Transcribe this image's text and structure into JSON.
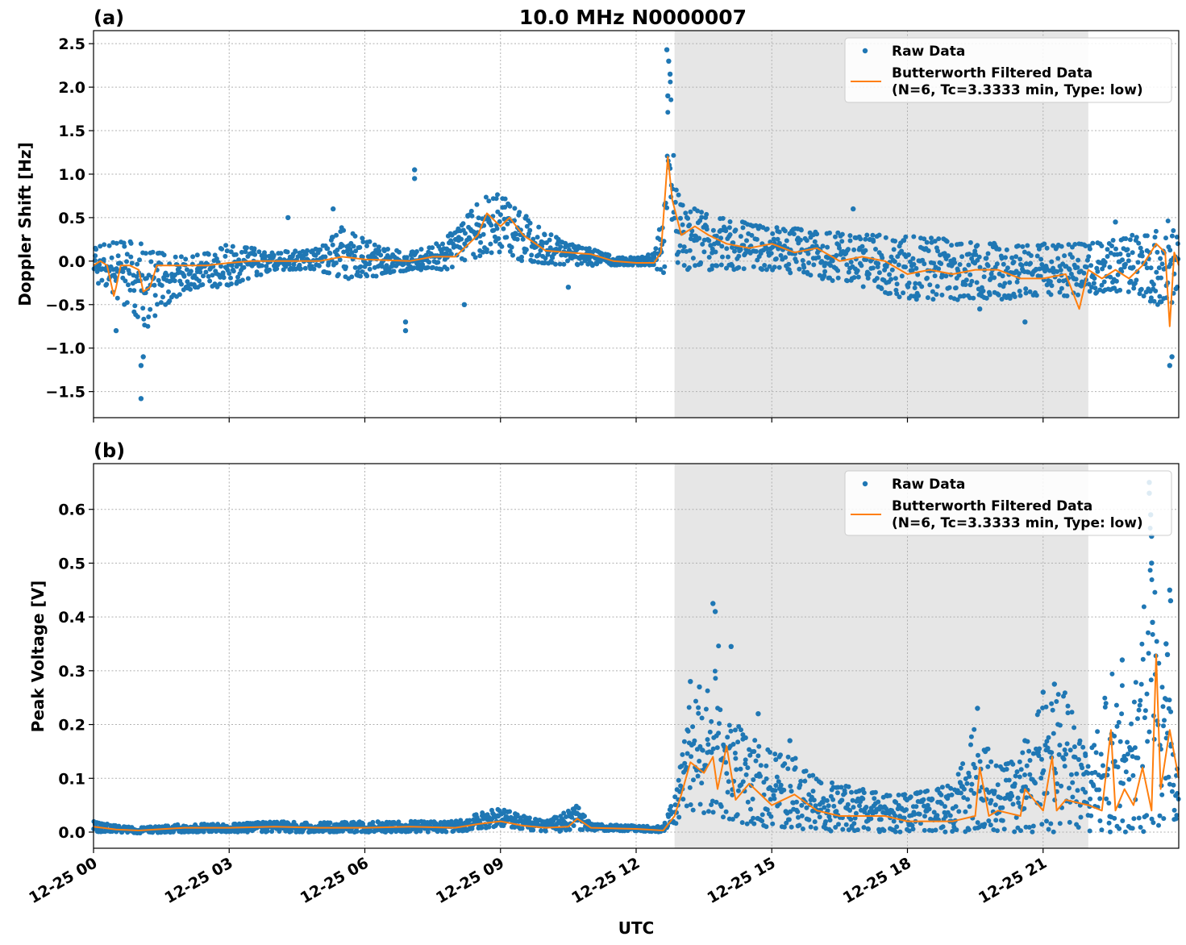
{
  "figure": {
    "title": "10.0 MHz N0000007",
    "xlabel": "UTC"
  },
  "colors": {
    "raw": "#1f77b4",
    "filtered": "#ff7f0e",
    "shade": "#e6e6e6"
  },
  "chart_data": [
    {
      "type": "scatter",
      "panel_tag": "(a)",
      "ylabel": "Doppler Shift [Hz]",
      "x_range_hours": [
        0,
        24
      ],
      "x_ticks": [
        "12-25 00",
        "12-25 03",
        "12-25 06",
        "12-25 09",
        "12-25 12",
        "12-25 15",
        "12-25 18",
        "12-25 21"
      ],
      "ylim": [
        -1.8,
        2.65
      ],
      "y_ticks": [
        "2.5",
        "2.0",
        "1.5",
        "1.0",
        "0.5",
        "0.0",
        "−0.5",
        "−1.0",
        "−1.5"
      ],
      "y_tick_values": [
        2.5,
        2.0,
        1.5,
        1.0,
        0.5,
        0.0,
        -0.5,
        -1.0,
        -1.5
      ],
      "grid": true,
      "shaded_interval_hours": [
        12.85,
        22.0
      ],
      "legend": {
        "placement": "top-right",
        "entries": [
          "Raw Data",
          "Butterworth Filtered Data",
          "(N=6, Tc=3.3333 min, Type: low)"
        ]
      },
      "series": [
        {
          "name": "Raw Data",
          "kind": "points",
          "envelope": {
            "x": [
              0,
              0.3,
              0.6,
              0.9,
              1.2,
              1.5,
              2.0,
              2.5,
              3.0,
              4.0,
              5.0,
              5.5,
              6.0,
              6.5,
              7.0,
              7.5,
              8.0,
              8.5,
              9.0,
              9.5,
              10.0,
              10.5,
              11.0,
              11.5,
              12.0,
              12.4,
              12.6,
              12.75,
              12.85,
              13.0,
              13.5,
              14.0,
              15.0,
              16.0,
              17.0,
              18.0,
              19.0,
              20.0,
              21.0,
              22.0,
              23.0,
              23.5,
              23.85,
              24.0
            ],
            "low": [
              -0.3,
              -0.3,
              -0.5,
              -0.6,
              -0.8,
              -0.55,
              -0.35,
              -0.3,
              -0.3,
              -0.1,
              -0.1,
              -0.25,
              -0.2,
              -0.15,
              -0.1,
              -0.1,
              -0.1,
              0.05,
              0.1,
              0.0,
              -0.05,
              -0.05,
              -0.05,
              -0.05,
              -0.05,
              -0.05,
              -0.2,
              0.3,
              0.0,
              -0.1,
              -0.1,
              -0.1,
              -0.1,
              -0.2,
              -0.3,
              -0.45,
              -0.45,
              -0.45,
              -0.4,
              -0.4,
              -0.35,
              -0.5,
              -0.5,
              -0.3
            ],
            "high": [
              0.15,
              0.2,
              0.25,
              0.25,
              0.15,
              0.1,
              0.05,
              0.1,
              0.2,
              0.1,
              0.15,
              0.4,
              0.25,
              0.15,
              0.1,
              0.2,
              0.35,
              0.7,
              0.8,
              0.55,
              0.35,
              0.2,
              0.15,
              0.05,
              0.04,
              0.1,
              0.6,
              2.3,
              0.9,
              0.7,
              0.55,
              0.5,
              0.4,
              0.35,
              0.3,
              0.3,
              0.25,
              0.2,
              0.2,
              0.2,
              0.3,
              0.4,
              0.5,
              0.35
            ]
          },
          "outliers": [
            {
              "x": 1.05,
              "y": -1.58
            },
            {
              "x": 1.05,
              "y": -1.2
            },
            {
              "x": 1.1,
              "y": -1.1
            },
            {
              "x": 0.5,
              "y": -0.8
            },
            {
              "x": 7.1,
              "y": 1.05
            },
            {
              "x": 7.1,
              "y": 0.95
            },
            {
              "x": 6.9,
              "y": -0.8
            },
            {
              "x": 6.9,
              "y": -0.7
            },
            {
              "x": 12.68,
              "y": 2.43
            },
            {
              "x": 12.72,
              "y": 2.3
            },
            {
              "x": 12.75,
              "y": 2.15
            },
            {
              "x": 12.7,
              "y": 1.9
            },
            {
              "x": 4.3,
              "y": 0.5
            },
            {
              "x": 5.3,
              "y": 0.6
            },
            {
              "x": 10.5,
              "y": -0.3
            },
            {
              "x": 8.2,
              "y": -0.5
            },
            {
              "x": 23.8,
              "y": -1.2
            },
            {
              "x": 23.85,
              "y": -1.1
            },
            {
              "x": 20.6,
              "y": -0.7
            },
            {
              "x": 19.6,
              "y": -0.55
            },
            {
              "x": 16.8,
              "y": 0.6
            },
            {
              "x": 22.6,
              "y": 0.45
            }
          ]
        },
        {
          "name": "Butterworth Filtered Data",
          "kind": "line",
          "x": [
            0,
            0.15,
            0.3,
            0.45,
            0.5,
            0.6,
            0.8,
            1.0,
            1.1,
            1.25,
            1.4,
            1.6,
            2.0,
            2.5,
            3.0,
            3.5,
            4.0,
            5.0,
            5.5,
            6.0,
            7.0,
            7.5,
            8.0,
            8.3,
            8.5,
            8.7,
            9.0,
            9.2,
            9.5,
            10.0,
            10.5,
            11.0,
            11.5,
            12.0,
            12.4,
            12.55,
            12.7,
            12.8,
            12.9,
            13.0,
            13.3,
            13.6,
            14.0,
            14.5,
            15.0,
            15.5,
            16.0,
            16.5,
            17.0,
            17.5,
            18.0,
            18.5,
            19.0,
            19.5,
            20.0,
            20.5,
            21.0,
            21.5,
            21.8,
            22.0,
            22.3,
            22.6,
            22.9,
            23.2,
            23.5,
            23.7,
            23.8,
            23.9,
            24.0
          ],
          "y": [
            -0.05,
            0.0,
            -0.05,
            -0.4,
            -0.3,
            -0.05,
            -0.05,
            -0.1,
            -0.35,
            -0.3,
            -0.05,
            -0.05,
            -0.05,
            -0.05,
            -0.02,
            0.0,
            0.0,
            0.0,
            0.05,
            0.02,
            0.0,
            0.05,
            0.05,
            0.2,
            0.3,
            0.55,
            0.4,
            0.5,
            0.3,
            0.12,
            0.1,
            0.08,
            0.0,
            -0.02,
            -0.02,
            0.1,
            1.2,
            0.7,
            0.5,
            0.3,
            0.4,
            0.3,
            0.2,
            0.15,
            0.2,
            0.1,
            0.15,
            0.0,
            0.05,
            0.0,
            -0.15,
            -0.1,
            -0.15,
            -0.1,
            -0.1,
            -0.2,
            -0.2,
            -0.15,
            -0.55,
            -0.1,
            -0.2,
            -0.1,
            -0.2,
            -0.05,
            0.2,
            0.1,
            -0.75,
            0.1,
            -0.05
          ]
        }
      ]
    },
    {
      "type": "scatter",
      "panel_tag": "(b)",
      "ylabel": "Peak Voltage [V]",
      "x_range_hours": [
        0,
        24
      ],
      "x_ticks": [
        "12-25 00",
        "12-25 03",
        "12-25 06",
        "12-25 09",
        "12-25 12",
        "12-25 15",
        "12-25 18",
        "12-25 21"
      ],
      "ylim": [
        -0.03,
        0.685
      ],
      "y_ticks": [
        "0.6",
        "0.5",
        "0.4",
        "0.3",
        "0.2",
        "0.1",
        "0.0"
      ],
      "y_tick_values": [
        0.6,
        0.5,
        0.4,
        0.3,
        0.2,
        0.1,
        0.0
      ],
      "grid": true,
      "shaded_interval_hours": [
        12.85,
        22.0
      ],
      "legend": {
        "placement": "top-right",
        "entries": [
          "Raw Data",
          "Butterworth Filtered Data",
          "(N=6, Tc=3.3333 min, Type: low)"
        ]
      },
      "series": [
        {
          "name": "Raw Data",
          "kind": "points",
          "envelope": {
            "x": [
              0,
              0.5,
              1.0,
              2.0,
              3.0,
              4.0,
              5.0,
              6.0,
              7.0,
              8.0,
              8.5,
              9.0,
              9.5,
              10.0,
              10.5,
              10.7,
              11.0,
              12.0,
              12.6,
              12.9,
              13.2,
              13.5,
              13.8,
              14.0,
              14.5,
              15.0,
              15.5,
              16.0,
              17.0,
              18.0,
              19.0,
              19.5,
              20.0,
              20.5,
              21.0,
              21.5,
              22.0,
              22.5,
              23.0,
              23.4,
              23.6,
              24.0
            ],
            "low": [
              0.0,
              0.0,
              -0.002,
              0.0,
              0.0,
              0.0,
              0.0,
              0.0,
              0.0,
              0.0,
              0.005,
              0.01,
              0.005,
              0.0,
              0.0,
              0.005,
              0.003,
              0.002,
              0.0,
              0.01,
              0.04,
              0.03,
              0.03,
              0.02,
              0.01,
              0.01,
              0.0,
              0.0,
              0.0,
              0.0,
              0.0,
              0.0,
              0.0,
              0.0,
              0.0,
              0.0,
              0.0,
              0.0,
              0.0,
              0.0,
              0.01,
              0.02
            ],
            "high": [
              0.02,
              0.012,
              0.008,
              0.015,
              0.015,
              0.02,
              0.018,
              0.02,
              0.02,
              0.02,
              0.035,
              0.045,
              0.03,
              0.02,
              0.04,
              0.05,
              0.015,
              0.012,
              0.01,
              0.08,
              0.26,
              0.22,
              0.4,
              0.22,
              0.18,
              0.15,
              0.14,
              0.1,
              0.08,
              0.07,
              0.09,
              0.2,
              0.12,
              0.14,
              0.25,
              0.26,
              0.13,
              0.3,
              0.25,
              0.6,
              0.3,
              0.2
            ]
          },
          "outliers": [
            {
              "x": 13.7,
              "y": 0.425
            },
            {
              "x": 13.75,
              "y": 0.41
            },
            {
              "x": 14.1,
              "y": 0.345
            },
            {
              "x": 13.2,
              "y": 0.28
            },
            {
              "x": 13.4,
              "y": 0.27
            },
            {
              "x": 14.7,
              "y": 0.22
            },
            {
              "x": 15.4,
              "y": 0.17
            },
            {
              "x": 19.55,
              "y": 0.23
            },
            {
              "x": 21.25,
              "y": 0.275
            },
            {
              "x": 21.0,
              "y": 0.26
            },
            {
              "x": 22.75,
              "y": 0.32
            },
            {
              "x": 23.35,
              "y": 0.65
            },
            {
              "x": 23.35,
              "y": 0.63
            },
            {
              "x": 23.38,
              "y": 0.59
            },
            {
              "x": 23.4,
              "y": 0.55
            },
            {
              "x": 23.4,
              "y": 0.5
            },
            {
              "x": 23.8,
              "y": 0.45
            },
            {
              "x": 23.82,
              "y": 0.43
            },
            {
              "x": 23.72,
              "y": 0.35
            },
            {
              "x": 23.75,
              "y": 0.33
            },
            {
              "x": 23.42,
              "y": 0.39
            },
            {
              "x": 20.6,
              "y": 0.17
            }
          ]
        },
        {
          "name": "Butterworth Filtered Data",
          "kind": "line",
          "x": [
            0,
            0.5,
            1.0,
            2.0,
            3.0,
            4.0,
            5.0,
            6.0,
            7.0,
            8.0,
            8.5,
            9.0,
            9.5,
            10.0,
            10.5,
            10.7,
            11.0,
            12.0,
            12.6,
            12.85,
            13.0,
            13.2,
            13.5,
            13.7,
            13.8,
            14.0,
            14.2,
            14.5,
            15.0,
            15.5,
            16.0,
            16.5,
            17.0,
            17.5,
            18.0,
            18.5,
            19.0,
            19.5,
            19.6,
            19.8,
            20.0,
            20.5,
            20.6,
            21.0,
            21.2,
            21.3,
            21.5,
            22.0,
            22.3,
            22.5,
            22.6,
            22.8,
            23.0,
            23.2,
            23.4,
            23.5,
            23.6,
            23.8,
            24.0
          ],
          "y": [
            0.01,
            0.005,
            0.003,
            0.008,
            0.008,
            0.01,
            0.008,
            0.008,
            0.01,
            0.008,
            0.015,
            0.02,
            0.012,
            0.008,
            0.01,
            0.025,
            0.008,
            0.006,
            0.003,
            0.03,
            0.07,
            0.13,
            0.11,
            0.14,
            0.08,
            0.16,
            0.06,
            0.09,
            0.05,
            0.07,
            0.04,
            0.03,
            0.03,
            0.03,
            0.02,
            0.02,
            0.02,
            0.03,
            0.12,
            0.03,
            0.04,
            0.03,
            0.08,
            0.04,
            0.14,
            0.04,
            0.06,
            0.05,
            0.04,
            0.19,
            0.04,
            0.08,
            0.05,
            0.12,
            0.04,
            0.33,
            0.08,
            0.19,
            0.1
          ]
        }
      ]
    }
  ]
}
